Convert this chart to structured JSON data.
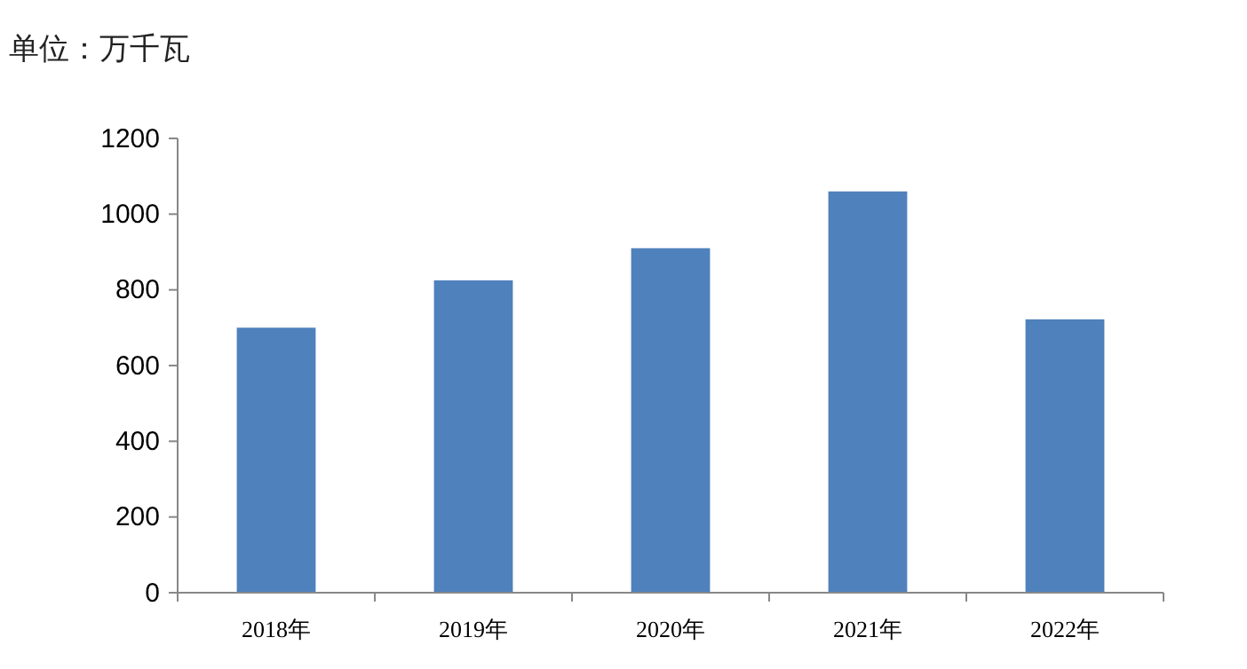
{
  "chart_data": {
    "type": "bar",
    "ylabel": "单位：万千瓦",
    "categories": [
      "2018年",
      "2019年",
      "2020年",
      "2021年",
      "2022年"
    ],
    "values": [
      700,
      825,
      910,
      1060,
      722
    ],
    "color": "#4f81bd",
    "ylim": [
      0,
      1200
    ],
    "yticks": [
      0,
      200,
      400,
      600,
      800,
      1000,
      1200
    ],
    "grid": false
  }
}
